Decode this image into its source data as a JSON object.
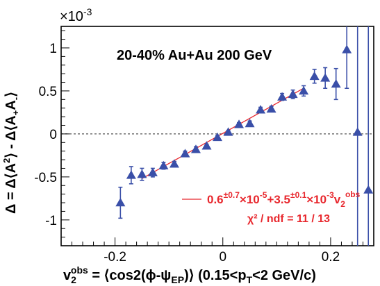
{
  "chart_data": {
    "type": "scatter",
    "title": "",
    "annotation": "20-40% Au+Au 200 GeV",
    "y_exponent_label": "×10",
    "y_exponent_power": "-3",
    "xlabel": {
      "main": "v",
      "sub": "2",
      "sup": "obs",
      "rest": " = ⟨cos2(ϕ-ψ",
      "rest_sub": "EP",
      "rest2": ")⟩ (0.15<p",
      "rest2_sub": "T",
      "rest3": "<2 GeV/c)"
    },
    "ylabel": {
      "p1": "Δ = Δ⟨A",
      "p1_sup": "2",
      "p2": "⟩ - Δ⟨A",
      "p2_sub": "+",
      "p3": "A",
      "p3_sub": "-",
      "p4": "⟩"
    },
    "xlim": [
      -0.3,
      0.28
    ],
    "ylim": [
      -1.3,
      1.25
    ],
    "xticks": [
      -0.2,
      0,
      0.2
    ],
    "xtick_labels": [
      "-0.2",
      "0",
      "0.2"
    ],
    "yticks": [
      -1,
      -0.5,
      0,
      0.5,
      1
    ],
    "ytick_labels": [
      "-1",
      "-0.5",
      "0",
      "0.5",
      "1"
    ],
    "units_note": "y values in units of 1e-3",
    "colors": {
      "data": "#3a4fa8",
      "fit": "#e8282e",
      "zero_line": "#555555"
    },
    "series": [
      {
        "marker": "triangle",
        "points": [
          {
            "x": -0.19,
            "y": -0.8,
            "err": 0.18
          },
          {
            "x": -0.17,
            "y": -0.48,
            "err": 0.1
          },
          {
            "x": -0.15,
            "y": -0.47,
            "err": 0.07
          },
          {
            "x": -0.13,
            "y": -0.45,
            "err": 0.05
          },
          {
            "x": -0.11,
            "y": -0.37,
            "err": 0.04
          },
          {
            "x": -0.09,
            "y": -0.35,
            "err": 0.03
          },
          {
            "x": -0.07,
            "y": -0.23,
            "err": 0.03
          },
          {
            "x": -0.05,
            "y": -0.18,
            "err": 0.03
          },
          {
            "x": -0.03,
            "y": -0.14,
            "err": 0.02
          },
          {
            "x": -0.01,
            "y": -0.04,
            "err": 0.02
          },
          {
            "x": 0.01,
            "y": 0.02,
            "err": 0.02
          },
          {
            "x": 0.03,
            "y": 0.11,
            "err": 0.02
          },
          {
            "x": 0.05,
            "y": 0.12,
            "err": 0.03
          },
          {
            "x": 0.07,
            "y": 0.28,
            "err": 0.03
          },
          {
            "x": 0.09,
            "y": 0.29,
            "err": 0.03
          },
          {
            "x": 0.11,
            "y": 0.43,
            "err": 0.04
          },
          {
            "x": 0.13,
            "y": 0.46,
            "err": 0.05
          },
          {
            "x": 0.15,
            "y": 0.5,
            "err": 0.06
          },
          {
            "x": 0.17,
            "y": 0.67,
            "err": 0.08
          },
          {
            "x": 0.19,
            "y": 0.65,
            "err": 0.12
          },
          {
            "x": 0.21,
            "y": 0.58,
            "err": 0.18
          },
          {
            "x": 0.23,
            "y": 0.98,
            "err": 0.45
          },
          {
            "x": 0.25,
            "y": 0.02,
            "err": 5.0
          },
          {
            "x": 0.27,
            "y": -0.65,
            "err": 5.0
          }
        ]
      }
    ],
    "fit": {
      "x_range": [
        -0.15,
        0.15
      ],
      "intercept": 0.006,
      "slope": 3.5,
      "label": {
        "a": "0.6",
        "a_sup": "±0.7",
        "b": "×10",
        "b_sup": "-5",
        "c": "+3.5",
        "c_sup": "±0.1",
        "d": "×10",
        "d_sup": "-3",
        "e": "v",
        "e_sub": "2",
        "e_sup": "obs"
      },
      "chi2": "χ² / ndf = 11 / 13"
    }
  }
}
